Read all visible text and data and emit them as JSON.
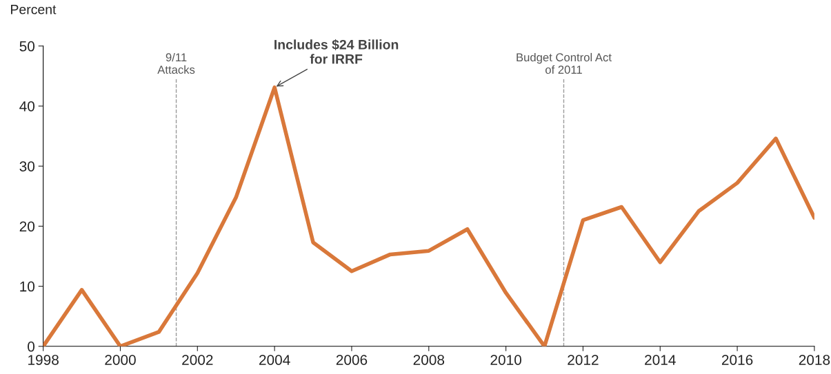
{
  "chart_data": {
    "type": "line",
    "ylabel": "Percent",
    "x": [
      1998,
      1999,
      2000,
      2001,
      2002,
      2003,
      2004,
      2005,
      2006,
      2007,
      2008,
      2009,
      2010,
      2011,
      2012,
      2013,
      2014,
      2015,
      2016,
      2017,
      2018
    ],
    "series": [
      {
        "color": "#d9783a",
        "values": [
          0,
          9.4,
          0,
          2.4,
          12.2,
          24.8,
          43.1,
          17.3,
          12.5,
          15.3,
          15.9,
          19.5,
          8.9,
          0,
          21.0,
          23.2,
          14.0,
          22.5,
          27.2,
          34.6,
          21.4
        ]
      }
    ],
    "xlim": [
      1998,
      2018
    ],
    "xticks": [
      1998,
      2000,
      2002,
      2004,
      2006,
      2008,
      2010,
      2012,
      2014,
      2016,
      2018
    ],
    "ylim": [
      0,
      50
    ],
    "yticks": [
      0,
      10,
      20,
      30,
      40,
      50
    ],
    "ref_lines": [
      {
        "axis": "x",
        "value": 2001.45,
        "label": "9/11\nAttacks",
        "color": "#999999",
        "line_style": "dashed"
      },
      {
        "axis": "x",
        "value": 2011.5,
        "label": "Budget Control Act\nof 2011",
        "color": "#999999",
        "line_style": "dashed"
      }
    ],
    "annotations": [
      {
        "text": "Includes $24 Billion\nfor IRRF",
        "x": 2004,
        "y": 43.1
      }
    ],
    "grid": false,
    "legend": false,
    "marker": "none",
    "line_style": "solid"
  }
}
